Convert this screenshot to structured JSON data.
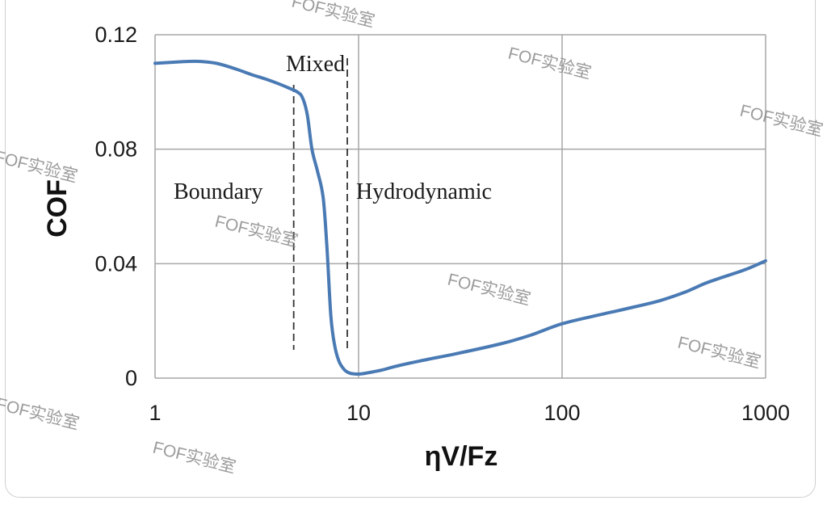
{
  "chart_data": {
    "type": "line",
    "xscale": "log",
    "xlim": [
      1,
      1000
    ],
    "ylim": [
      0,
      0.12
    ],
    "grid": true,
    "xlabel": "ηV/Fz",
    "ylabel": "COF",
    "xticks": [
      "1",
      "10",
      "100",
      "1000"
    ],
    "yticks": [
      "0",
      "0.04",
      "0.08",
      "0.12"
    ],
    "series": [
      {
        "color": "#4a7ab4",
        "x": [
          1,
          1.3,
          1.6,
          2,
          2.5,
          3,
          3.5,
          4,
          4.5,
          5,
          5.3,
          5.6,
          5.9,
          6.3,
          6.7,
          7,
          7.3,
          7.6,
          8,
          8.5,
          9,
          9.5,
          10,
          11,
          13,
          15,
          20,
          30,
          50,
          70,
          100,
          150,
          200,
          300,
          400,
          500,
          600,
          800,
          1000
        ],
        "y": [
          0.11,
          0.1105,
          0.1107,
          0.11,
          0.108,
          0.106,
          0.1045,
          0.103,
          0.1015,
          0.1,
          0.098,
          0.092,
          0.08,
          0.072,
          0.063,
          0.045,
          0.022,
          0.012,
          0.006,
          0.003,
          0.0018,
          0.0015,
          0.0014,
          0.0018,
          0.0028,
          0.004,
          0.006,
          0.0085,
          0.012,
          0.015,
          0.019,
          0.022,
          0.024,
          0.027,
          0.03,
          0.033,
          0.035,
          0.038,
          0.041
        ]
      }
    ],
    "regions": [
      {
        "label": "Boundary"
      },
      {
        "label": "Mixed"
      },
      {
        "label": "Hydrodynamic"
      }
    ],
    "boundaries_x": [
      4.8,
      8.8
    ]
  },
  "watermark": "FOF实验室"
}
